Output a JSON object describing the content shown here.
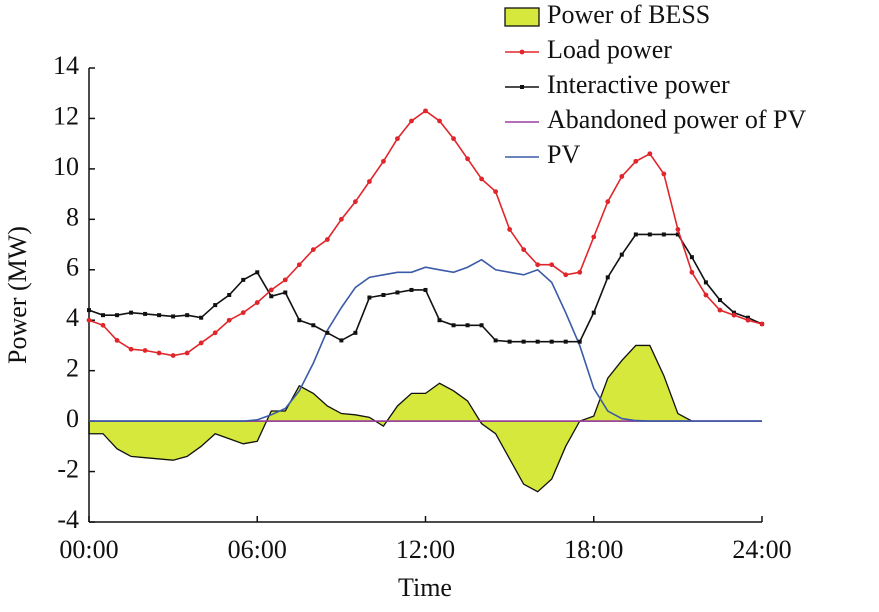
{
  "chart_data": {
    "type": "line",
    "xlabel": "Time",
    "ylabel": "Power (MW)",
    "x": [
      0,
      0.5,
      1,
      1.5,
      2,
      2.5,
      3,
      3.5,
      4,
      4.5,
      5,
      5.5,
      6,
      6.5,
      7,
      7.5,
      8,
      8.5,
      9,
      9.5,
      10,
      10.5,
      11,
      11.5,
      12,
      12.5,
      13,
      13.5,
      14,
      14.5,
      15,
      15.5,
      16,
      16.5,
      17,
      17.5,
      18,
      18.5,
      19,
      19.5,
      20,
      20.5,
      21,
      21.5,
      22,
      22.5,
      23,
      23.5,
      24
    ],
    "xlim": [
      0,
      24
    ],
    "xticks": [
      {
        "value": 0,
        "label": "00:00"
      },
      {
        "value": 6,
        "label": "06:00"
      },
      {
        "value": 12,
        "label": "12:00"
      },
      {
        "value": 18,
        "label": "18:00"
      },
      {
        "value": 24,
        "label": "24:00"
      }
    ],
    "ylim": [
      -4,
      14
    ],
    "yticks": [
      -4,
      -2,
      0,
      2,
      4,
      6,
      8,
      10,
      12,
      14
    ],
    "legend": "upper right",
    "series": [
      {
        "name": "Power of BESS",
        "type": "area",
        "color": "#d6e83c",
        "values": [
          -0.5,
          -0.5,
          -1.1,
          -1.4,
          -1.45,
          -1.5,
          -1.55,
          -1.4,
          -1.0,
          -0.5,
          -0.7,
          -0.9,
          -0.8,
          0.4,
          0.4,
          1.4,
          1.1,
          0.6,
          0.3,
          0.25,
          0.15,
          -0.2,
          0.6,
          1.1,
          1.1,
          1.5,
          1.2,
          0.8,
          -0.1,
          -0.5,
          -1.5,
          -2.5,
          -2.8,
          -2.3,
          -1.0,
          0.0,
          0.2,
          1.7,
          2.4,
          3.0,
          3.0,
          1.8,
          0.3,
          0,
          0,
          0,
          0,
          0,
          0
        ]
      },
      {
        "name": "Load power",
        "type": "line",
        "marker": "circle",
        "color": "#e0262b",
        "values": [
          4.0,
          3.8,
          3.2,
          2.85,
          2.8,
          2.7,
          2.6,
          2.7,
          3.1,
          3.5,
          4.0,
          4.3,
          4.7,
          5.2,
          5.6,
          6.2,
          6.8,
          7.2,
          8.0,
          8.7,
          9.5,
          10.3,
          11.2,
          11.9,
          12.3,
          11.9,
          11.2,
          10.4,
          9.6,
          9.1,
          7.6,
          6.8,
          6.2,
          6.2,
          5.8,
          5.9,
          7.3,
          8.7,
          9.7,
          10.3,
          10.6,
          9.8,
          7.6,
          5.9,
          5.0,
          4.4,
          4.2,
          4.0,
          3.85
        ]
      },
      {
        "name": "Interactive power",
        "type": "line",
        "marker": "square",
        "color": "#111111",
        "values": [
          4.4,
          4.2,
          4.2,
          4.3,
          4.25,
          4.2,
          4.15,
          4.2,
          4.1,
          4.6,
          5.0,
          5.6,
          5.9,
          4.95,
          5.1,
          4.0,
          3.8,
          3.5,
          3.2,
          3.5,
          4.9,
          5.0,
          5.1,
          5.2,
          5.2,
          4.0,
          3.8,
          3.8,
          3.8,
          3.2,
          3.15,
          3.15,
          3.15,
          3.15,
          3.15,
          3.15,
          4.3,
          5.7,
          6.6,
          7.4,
          7.4,
          7.4,
          7.4,
          6.5,
          5.5,
          4.8,
          4.3,
          4.1,
          3.85
        ]
      },
      {
        "name": "Abandoned power of PV",
        "type": "line",
        "color": "#9b3fa0",
        "values": [
          0,
          0,
          0,
          0,
          0,
          0,
          0,
          0,
          0,
          0,
          0,
          0,
          0,
          0,
          0,
          0,
          0,
          0,
          0,
          0,
          0,
          0,
          0,
          0,
          0,
          0,
          0,
          0,
          0,
          0,
          0,
          0,
          0,
          0,
          0,
          0,
          0,
          0,
          0,
          0,
          0,
          0,
          0,
          0,
          0,
          0,
          0,
          0,
          0
        ]
      },
      {
        "name": "PV",
        "type": "line",
        "color": "#3b5ba8",
        "values": [
          0,
          0,
          0,
          0,
          0,
          0,
          0,
          0,
          0,
          0,
          0,
          0,
          0.05,
          0.25,
          0.5,
          1.2,
          2.3,
          3.6,
          4.5,
          5.3,
          5.7,
          5.8,
          5.9,
          5.9,
          6.1,
          6.0,
          5.9,
          6.1,
          6.4,
          6.0,
          5.9,
          5.8,
          6.0,
          5.5,
          4.3,
          3.0,
          1.3,
          0.4,
          0.1,
          0.02,
          0,
          0,
          0,
          0,
          0,
          0,
          0,
          0,
          0
        ]
      }
    ]
  }
}
